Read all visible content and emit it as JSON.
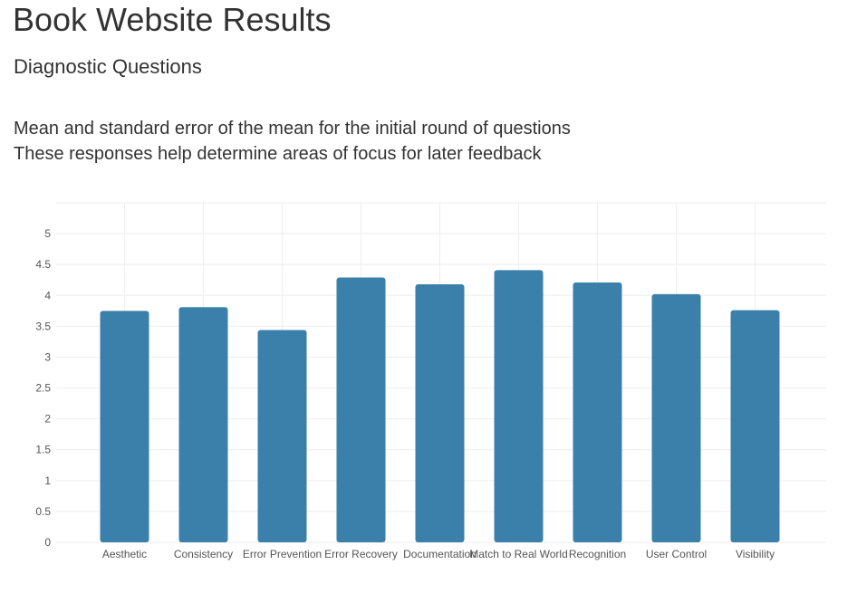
{
  "page": {
    "title": "Book Website Results",
    "subtitle": "Diagnostic Questions",
    "description_line1": "Mean and standard error of the mean for the initial round of questions",
    "description_line2": "These responses help determine areas of focus for later feedback"
  },
  "chart_data": {
    "type": "bar",
    "categories": [
      "Aesthetic",
      "Consistency",
      "Error Prevention",
      "Error Recovery",
      "Documentation",
      "Match to Real World",
      "Recognition",
      "User Control",
      "Visibility"
    ],
    "values": [
      3.75,
      3.81,
      3.44,
      4.29,
      4.18,
      4.41,
      4.21,
      4.02,
      3.76
    ],
    "yticks": [
      "0",
      "0.5",
      "1",
      "1.5",
      "2",
      "2.5",
      "3",
      "3.5",
      "4",
      "4.5",
      "5"
    ],
    "ylim": [
      0,
      5.5
    ],
    "grid": true,
    "bar_color": "#3a80aa",
    "grid_color": "#eeeeee",
    "xlabel": "",
    "ylabel": ""
  }
}
